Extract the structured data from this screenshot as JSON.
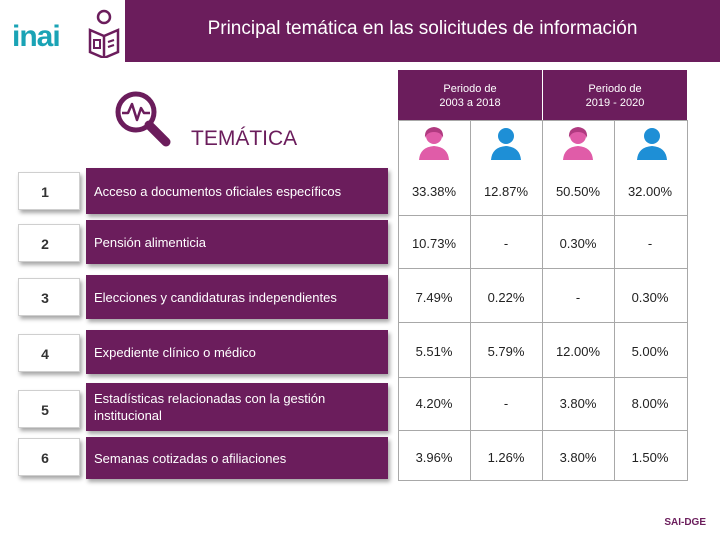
{
  "header": {
    "logo_text": "inai",
    "title": "Principal temática en las solicitudes de información"
  },
  "section": {
    "label": "TEMÁTICA"
  },
  "columns": [
    {
      "label_line1": "Periodo de",
      "label_line2": "2003 a 2018"
    },
    {
      "label_line1": "Periodo de",
      "label_line2": "2019 - 2020"
    }
  ],
  "icons": {
    "female": "female-person-icon",
    "male": "male-person-icon",
    "search": "magnifier-chart-icon"
  },
  "colors": {
    "brand_purple": "#6b1d5c",
    "female_pink": "#e05ca8",
    "male_blue": "#1e8fd6",
    "logo_teal": "#1aa3b5"
  },
  "rows": [
    {
      "num": "1",
      "label": "Acceso a documentos oficiales específicos",
      "values": [
        "33.38%",
        "12.87%",
        "50.50%",
        "32.00%"
      ]
    },
    {
      "num": "2",
      "label": "Pensión alimenticia",
      "values": [
        "10.73%",
        "-",
        "0.30%",
        "-"
      ]
    },
    {
      "num": "3",
      "label": "Elecciones y candidaturas independientes",
      "values": [
        "7.49%",
        "0.22%",
        "-",
        "0.30%"
      ]
    },
    {
      "num": "4",
      "label": "Expediente clínico o médico",
      "values": [
        "5.51%",
        "5.79%",
        "12.00%",
        "5.00%"
      ]
    },
    {
      "num": "5",
      "label": "Estadísticas relacionadas con la gestión institucional",
      "values": [
        "4.20%",
        "-",
        "3.80%",
        "8.00%"
      ]
    },
    {
      "num": "6",
      "label": "Semanas cotizadas o afiliaciones",
      "values": [
        "3.96%",
        "1.26%",
        "3.80%",
        "1.50%"
      ]
    }
  ],
  "footer": {
    "text": "SAI-DGE"
  }
}
